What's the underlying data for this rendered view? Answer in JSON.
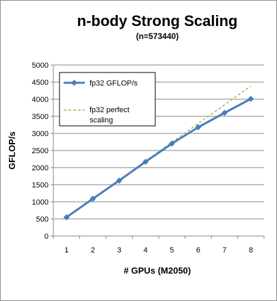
{
  "chart_data": {
    "type": "line",
    "title": "n-body Strong Scaling",
    "subtitle": "(n=573440)",
    "xlabel": "# GPUs (M2050)",
    "ylabel": "GFLOP/s",
    "x": [
      1,
      2,
      3,
      4,
      5,
      6,
      7,
      8
    ],
    "ylim": [
      0,
      5000
    ],
    "yticks": [
      0,
      500,
      1000,
      1500,
      2000,
      2500,
      3000,
      3500,
      4000,
      4500,
      5000
    ],
    "grid": "horizontal",
    "legend_position": "top-left",
    "series": [
      {
        "name": "fp32 GFLOP/s",
        "values": [
          548,
          1090,
          1620,
          2170,
          2700,
          3180,
          3600,
          4010
        ],
        "color": "#4a7ebb",
        "style": "solid",
        "marker": "diamond"
      },
      {
        "name_lines": [
          "fp32 perfect",
          "scaling"
        ],
        "values": [
          548,
          1096,
          1644,
          2192,
          2740,
          3288,
          3836,
          4384
        ],
        "color": "#9bbb59",
        "style": "dashed",
        "marker": "none"
      }
    ]
  }
}
